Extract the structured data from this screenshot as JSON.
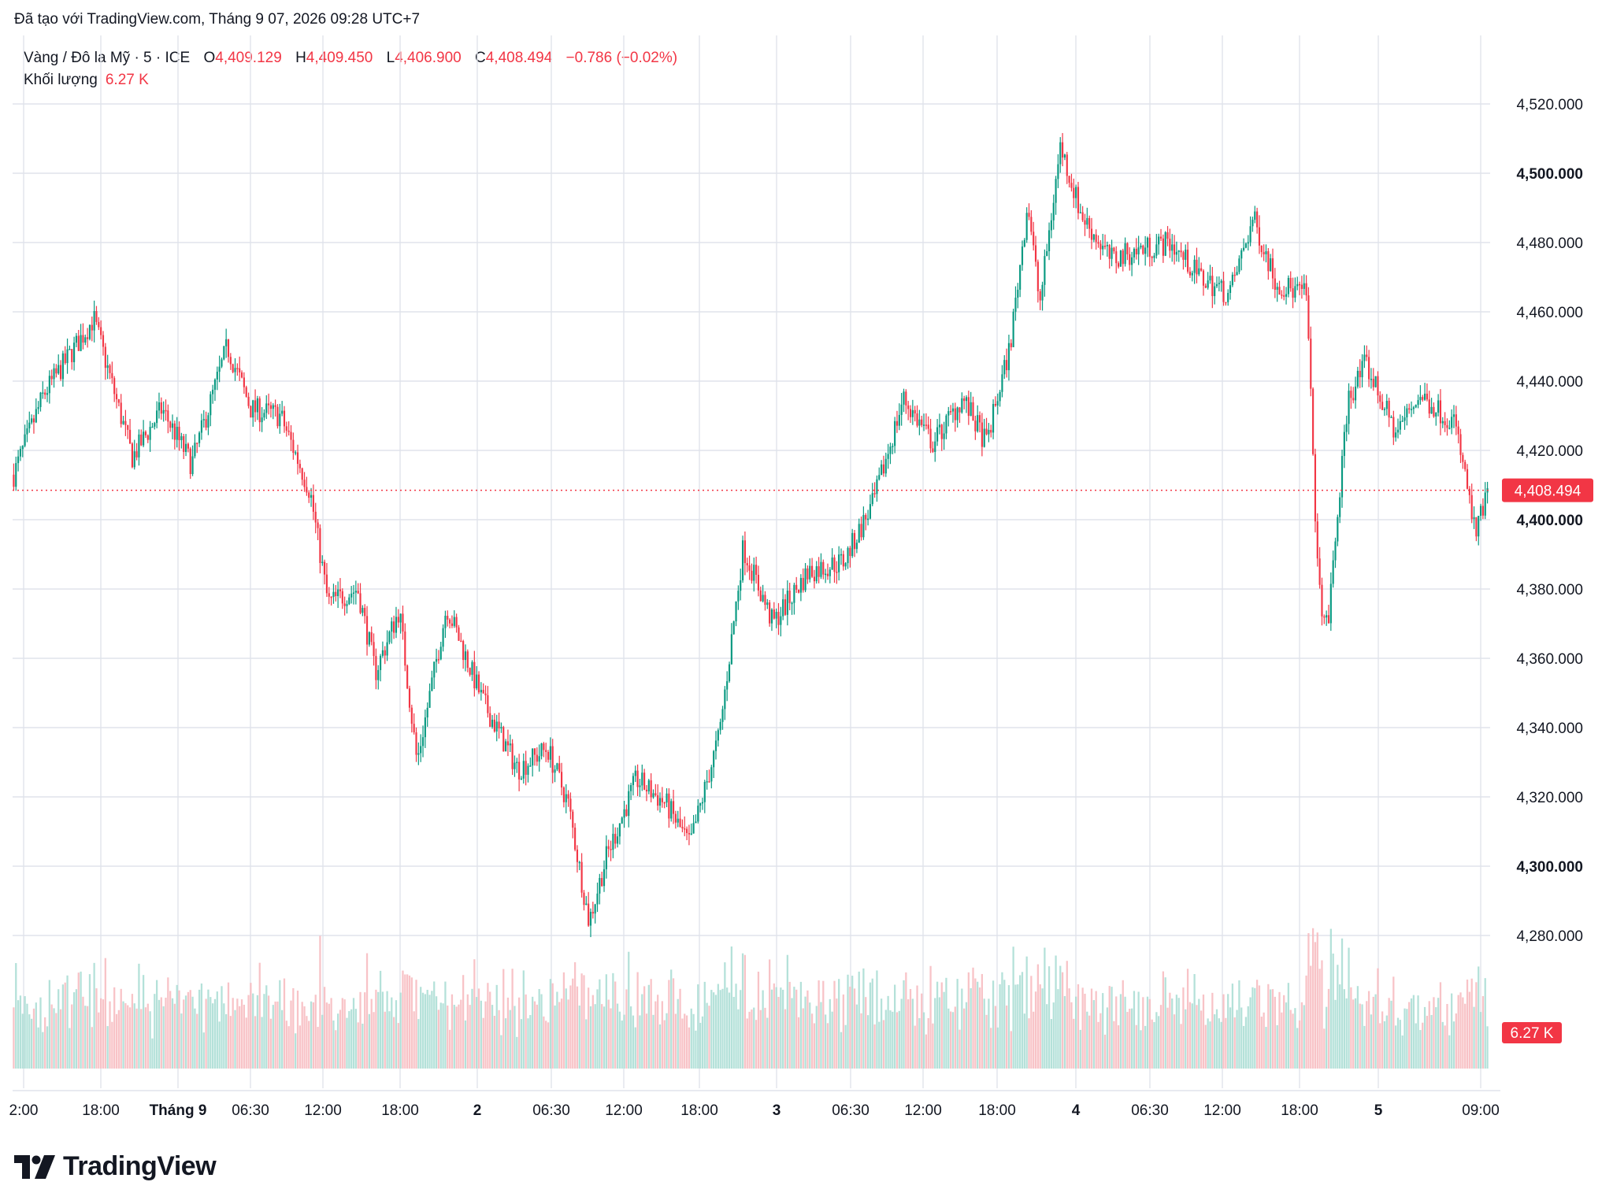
{
  "caption": "Đã tạo với TradingView.com, Tháng 9 07, 2026 09:28 UTC+7",
  "legend": {
    "symbol": "Vàng / Đô la Mỹ · 5 · ICE",
    "o_label": "O",
    "o_value": "4,409.129",
    "h_label": "H",
    "h_value": "4,409.450",
    "l_label": "L",
    "l_value": "4,406.900",
    "c_label": "C",
    "c_value": "4,408.494",
    "change": "−0.786 (−0.02%)"
  },
  "volume_legend": {
    "label": "Khối lượng",
    "value": "6.27 K"
  },
  "brand": "TradingView",
  "colors": {
    "up": "#089981",
    "down": "#f23645",
    "grid": "#e0e3eb",
    "text": "#131722",
    "vol_up": "#a7dcd2",
    "vol_down": "#f7b8bd"
  },
  "chart_data": {
    "type": "candlestick",
    "interval": "5",
    "y_ticks": [
      "4,520.000",
      "4,500.000",
      "4,480.000",
      "4,460.000",
      "4,440.000",
      "4,420.000",
      "4,400.000",
      "4,380.000",
      "4,360.000",
      "4,340.000",
      "4,320.000",
      "4,300.000",
      "4,280.000"
    ],
    "y_tick_values": [
      4520,
      4500,
      4480,
      4460,
      4440,
      4420,
      4400,
      4380,
      4360,
      4340,
      4320,
      4300,
      4280
    ],
    "bold_ticks": [
      "4,500.000",
      "4,400.000",
      "4,300.000"
    ],
    "ylim": [
      4257,
      4532
    ],
    "x_ticks": [
      "2:00",
      "18:00",
      "Tháng 9",
      "06:30",
      "12:00",
      "18:00",
      "2",
      "06:30",
      "12:00",
      "18:00",
      "3",
      "06:30",
      "12:00",
      "18:00",
      "4",
      "06:30",
      "12:00",
      "18:00",
      "5",
      "09:00"
    ],
    "bold_x_ticks": [
      "Tháng 9",
      "2",
      "3",
      "4",
      "5"
    ],
    "last_price": "4,408.494",
    "last_price_value": 4408.494,
    "last_volume": "6.27 K",
    "price_path": [
      [
        0,
        4413
      ],
      [
        1.0,
        4436
      ],
      [
        2.7,
        4458
      ],
      [
        4.0,
        4418
      ],
      [
        5.0,
        4432
      ],
      [
        6.0,
        4416
      ],
      [
        7.2,
        4450
      ],
      [
        8.0,
        4432
      ],
      [
        9.0,
        4430
      ],
      [
        10.0,
        4408
      ],
      [
        10.6,
        4376
      ],
      [
        11.6,
        4380
      ],
      [
        12.2,
        4356
      ],
      [
        13.0,
        4374
      ],
      [
        13.6,
        4330
      ],
      [
        14.6,
        4375
      ],
      [
        15.8,
        4348
      ],
      [
        17.0,
        4328
      ],
      [
        18.0,
        4334
      ],
      [
        18.7,
        4318
      ],
      [
        19.4,
        4284
      ],
      [
        20.0,
        4303
      ],
      [
        21.0,
        4325
      ],
      [
        22.0,
        4318
      ],
      [
        22.8,
        4306
      ],
      [
        23.8,
        4338
      ],
      [
        24.6,
        4392
      ],
      [
        25.6,
        4370
      ],
      [
        26.8,
        4385
      ],
      [
        28.0,
        4388
      ],
      [
        29.0,
        4405
      ],
      [
        30.0,
        4435
      ],
      [
        31.0,
        4422
      ],
      [
        32.0,
        4435
      ],
      [
        32.8,
        4422
      ],
      [
        33.6,
        4450
      ],
      [
        34.2,
        4492
      ],
      [
        34.6,
        4462
      ],
      [
        35.3,
        4508
      ],
      [
        36.0,
        4488
      ],
      [
        37.0,
        4475
      ],
      [
        38.0,
        4478
      ],
      [
        39.0,
        4480
      ],
      [
        40.0,
        4470
      ],
      [
        41.0,
        4465
      ],
      [
        41.8,
        4487
      ],
      [
        42.6,
        4468
      ],
      [
        43.6,
        4465
      ],
      [
        44.0,
        4380
      ],
      [
        44.3,
        4368
      ],
      [
        45.0,
        4435
      ],
      [
        45.6,
        4445
      ],
      [
        46.6,
        4425
      ],
      [
        47.4,
        4436
      ],
      [
        48.6,
        4428
      ],
      [
        49.0,
        4410
      ],
      [
        49.3,
        4395
      ],
      [
        49.7,
        4408
      ]
    ],
    "volume_range_k": [
      0,
      8
    ]
  }
}
